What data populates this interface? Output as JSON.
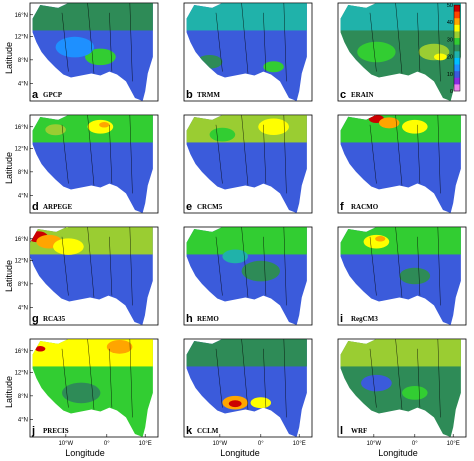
{
  "chart_data": {
    "type": "heatmap",
    "x_axis_label": "Longitude",
    "y_axis_label": "Latitude",
    "x_ticks": [
      "10°W",
      "0°",
      "10°E"
    ],
    "y_ticks": [
      "4°N",
      "8°N",
      "12°N",
      "16°N"
    ],
    "colorbar": {
      "ticks": [
        "0",
        "10",
        "20",
        "30",
        "40",
        "50"
      ],
      "colors": [
        "#ee82ee",
        "#8a2be2",
        "#3b5bdb",
        "#1e90ff",
        "#00bfff",
        "#20b2aa",
        "#2e8b57",
        "#32cd32",
        "#9acd32",
        "#ffff00",
        "#ffa500",
        "#ff4500",
        "#cc0000"
      ]
    },
    "panels": [
      {
        "letter": "a",
        "name": "GPCP"
      },
      {
        "letter": "b",
        "name": "TRMM"
      },
      {
        "letter": "c",
        "name": "ERAIN"
      },
      {
        "letter": "d",
        "name": "ARPEGE"
      },
      {
        "letter": "e",
        "name": "CRCM5"
      },
      {
        "letter": "f",
        "name": "RACMO"
      },
      {
        "letter": "g",
        "name": "RCA35"
      },
      {
        "letter": "h",
        "name": "REMO"
      },
      {
        "letter": "i",
        "name": "RegCM3"
      },
      {
        "letter": "j",
        "name": "PRECIS"
      },
      {
        "letter": "k",
        "name": "CCLM"
      },
      {
        "letter": "l",
        "name": "WRF"
      }
    ]
  }
}
